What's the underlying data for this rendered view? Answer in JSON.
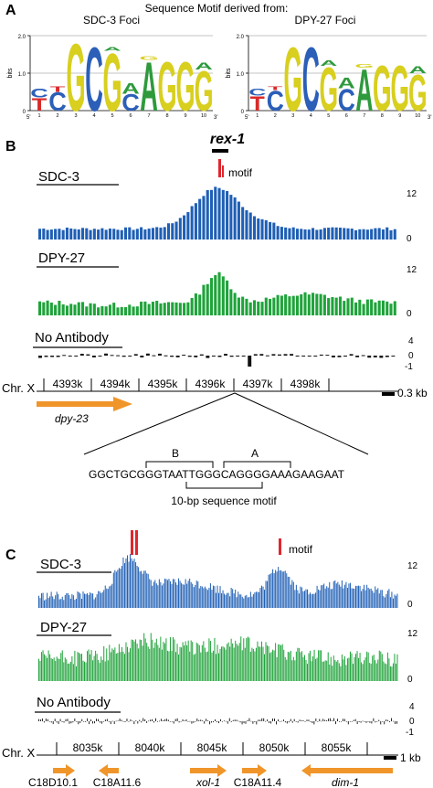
{
  "panelA": {
    "label": "A",
    "title": "Sequence Motif derived from:",
    "logos": [
      {
        "subtitle": "SDC-3 Foci",
        "ylabel": "bits",
        "yticks": [
          "0",
          "1.0",
          "2.0"
        ],
        "xticks": [
          "1",
          "2",
          "3",
          "4",
          "5",
          "6",
          "7",
          "8",
          "9",
          "10"
        ],
        "end5": "5'",
        "end3": "3'",
        "letters": [
          [
            [
              "T",
              0.35,
              "red"
            ],
            [
              "C",
              0.25,
              "blue"
            ]
          ],
          [
            [
              "C",
              0.5,
              "blue"
            ],
            [
              "T",
              0.15,
              "red"
            ]
          ],
          [
            [
              "G",
              1.85,
              "yellow"
            ]
          ],
          [
            [
              "C",
              1.75,
              "blue"
            ]
          ],
          [
            [
              "G",
              1.6,
              "yellow"
            ],
            [
              "A",
              0.1,
              "green"
            ]
          ],
          [
            [
              "C",
              0.45,
              "blue"
            ],
            [
              "A",
              0.3,
              "green"
            ]
          ],
          [
            [
              "A",
              1.35,
              "green"
            ],
            [
              "G",
              0.1,
              "yellow"
            ]
          ],
          [
            [
              "G",
              1.35,
              "yellow"
            ]
          ],
          [
            [
              "G",
              1.35,
              "yellow"
            ]
          ],
          [
            [
              "G",
              1.1,
              "yellow"
            ],
            [
              "A",
              0.2,
              "green"
            ]
          ]
        ]
      },
      {
        "subtitle": "DPY-27 Foci",
        "ylabel": "bits",
        "yticks": [
          "0",
          "1.0",
          "2.0"
        ],
        "xticks": [
          "1",
          "2",
          "3",
          "4",
          "5",
          "6",
          "7",
          "8",
          "9",
          "10"
        ],
        "end5": "5'",
        "end3": "3'",
        "letters": [
          [
            [
              "T",
              0.4,
              "red"
            ],
            [
              "C",
              0.2,
              "blue"
            ]
          ],
          [
            [
              "C",
              0.55,
              "blue"
            ],
            [
              "T",
              0.1,
              "red"
            ]
          ],
          [
            [
              "G",
              1.75,
              "yellow"
            ]
          ],
          [
            [
              "C",
              1.75,
              "blue"
            ]
          ],
          [
            [
              "G",
              1.2,
              "yellow"
            ],
            [
              "A",
              0.15,
              "green"
            ]
          ],
          [
            [
              "C",
              0.6,
              "blue"
            ],
            [
              "A",
              0.3,
              "green"
            ]
          ],
          [
            [
              "A",
              1.15,
              "green"
            ],
            [
              "G",
              0.1,
              "yellow"
            ]
          ],
          [
            [
              "G",
              1.25,
              "yellow"
            ]
          ],
          [
            [
              "G",
              1.25,
              "yellow"
            ]
          ],
          [
            [
              "G",
              1.0,
              "yellow"
            ],
            [
              "A",
              0.2,
              "green"
            ]
          ]
        ]
      }
    ]
  },
  "panelB": {
    "label": "B",
    "locus": "rex-1",
    "motif_label": "motif",
    "tracks": [
      {
        "name": "SDC-3",
        "top": "12",
        "bottom": "0",
        "color": "#1f5fb5"
      },
      {
        "name": "DPY-27",
        "top": "12",
        "bottom": "0",
        "color": "#1fa33a"
      },
      {
        "name": "No Antibody",
        "top": "4",
        "mid": "0",
        "bottom": "-1",
        "color": "#111111"
      }
    ],
    "chromosome": "Chr. X",
    "coords": [
      "4393k",
      "4394k",
      "4395k",
      "4396k",
      "4397k",
      "4398k"
    ],
    "scale": "0.3 kb",
    "gene": "dpy-23",
    "sequence": "GGCTGCGGGTAATTGGGCAGGGGAAAGAAGAAT",
    "bracket_B": "B",
    "bracket_A": "A",
    "motif_caption": "10-bp sequence motif"
  },
  "panelC": {
    "label": "C",
    "motif_label": "motif",
    "tracks": [
      {
        "name": "SDC-3",
        "top": "12",
        "bottom": "0",
        "color": "#1f5fb5"
      },
      {
        "name": "DPY-27",
        "top": "12",
        "bottom": "0",
        "color": "#1fa33a"
      },
      {
        "name": "No Antibody",
        "top": "4",
        "mid": "0",
        "bottom": "-1",
        "color": "#111111"
      }
    ],
    "chromosome": "Chr. X",
    "coords": [
      "8035k",
      "8040k",
      "8045k",
      "8050k",
      "8055k"
    ],
    "scale": "1 kb",
    "genes": [
      "C18D10.1",
      "C18A11.6",
      "xol-1",
      "C18A11.4",
      "dim-1"
    ]
  },
  "colors": {
    "blue": "#1f5fb5",
    "green": "#1fa33a",
    "orange": "#f0952a",
    "red": "#e0262e",
    "logo_red": "#d92a2a",
    "logo_blue": "#2b5fb8",
    "logo_yellow": "#d8cf1e",
    "logo_green": "#2e9a3c"
  }
}
